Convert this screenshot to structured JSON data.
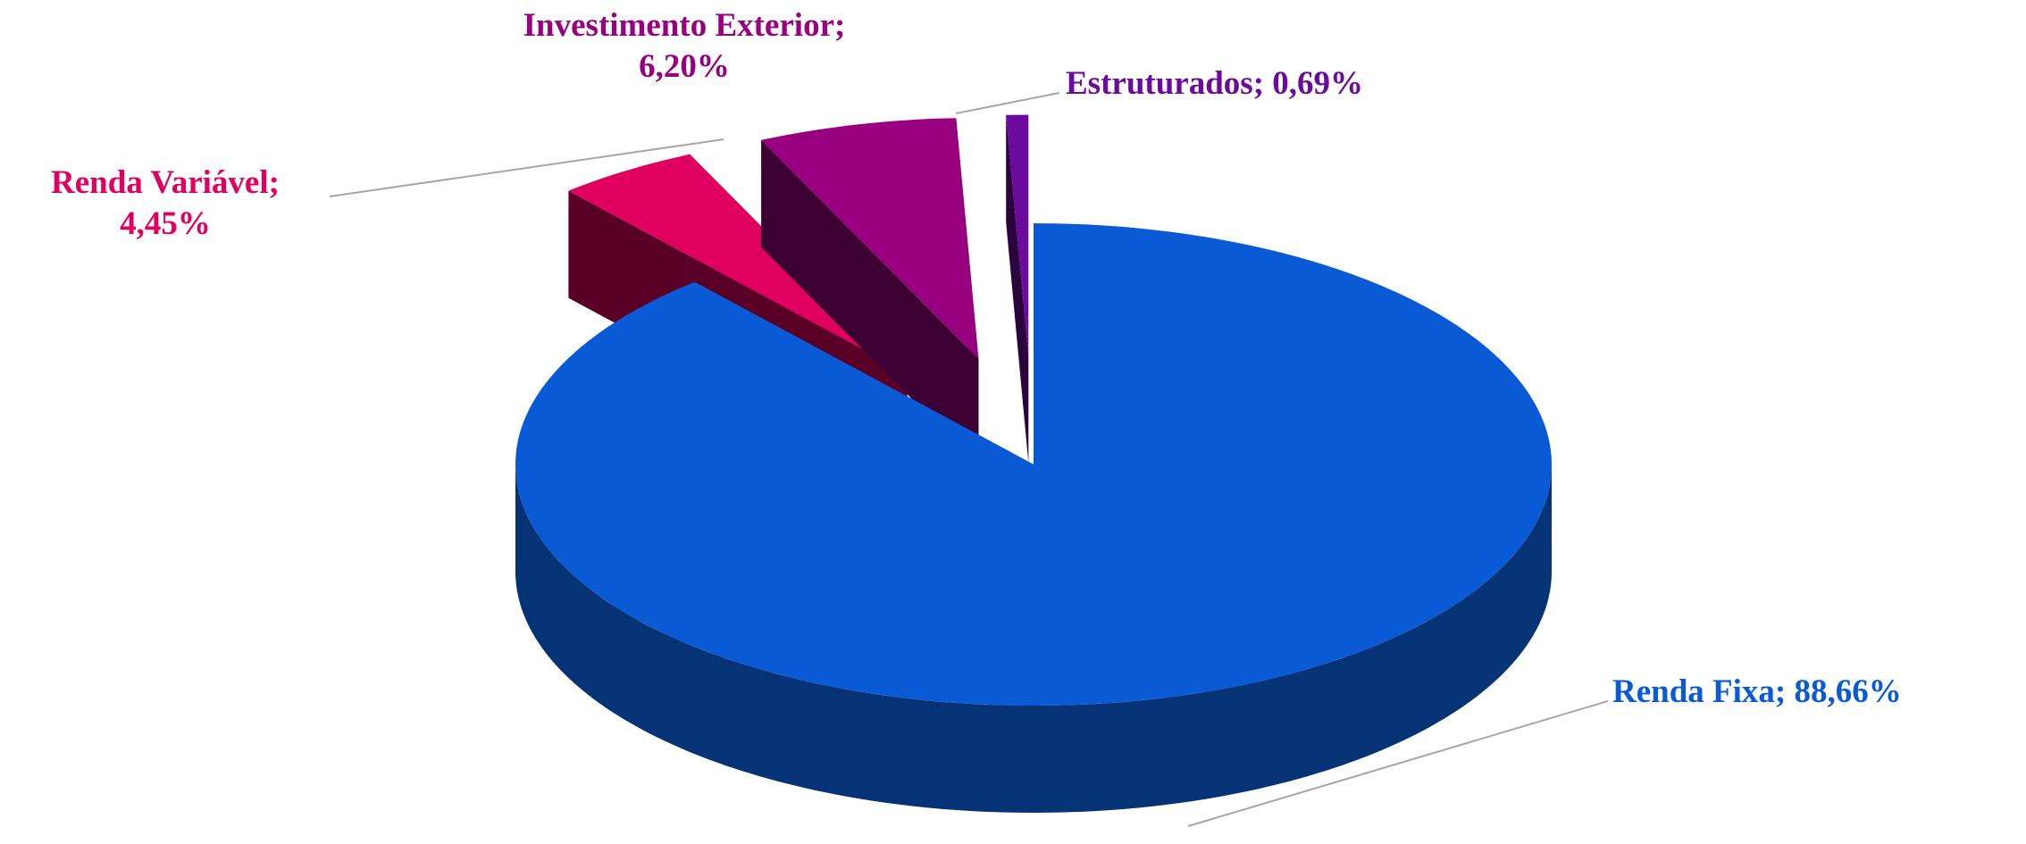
{
  "chart_data": {
    "type": "pie3d",
    "values": [
      88.66,
      4.45,
      6.2,
      0.69
    ],
    "value_labels": [
      "Renda Fixa; 88,66%",
      "Renda Variável; 4,45%",
      "Investimento Exterior; 6,20%",
      "Estruturados; 0,69%"
    ],
    "colors": [
      "#0a5ad6",
      "#e0005f",
      "#990080",
      "#6b0a9c"
    ]
  }
}
